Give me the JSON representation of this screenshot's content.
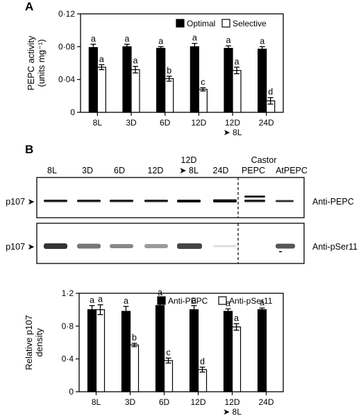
{
  "panels": {
    "a": "A",
    "b": "B"
  },
  "chart_data": [
    {
      "id": "chartA",
      "type": "bar",
      "categories": [
        "8L",
        "3D",
        "6D",
        "12D",
        "12D ➤ 8L",
        "24D"
      ],
      "category_lines": [
        [
          "8L"
        ],
        [
          "3D"
        ],
        [
          "6D"
        ],
        [
          "12D"
        ],
        [
          "12D",
          "➤ 8L"
        ],
        [
          "24D"
        ]
      ],
      "series": [
        {
          "name": "Optimal",
          "values": [
            0.079,
            0.08,
            0.078,
            0.08,
            0.078,
            0.077
          ],
          "errors": [
            0.004,
            0.003,
            0.002,
            0.004,
            0.003,
            0.003
          ],
          "letters": [
            "a",
            "a",
            "a",
            "a",
            "a",
            "a"
          ],
          "fill": "#000000"
        },
        {
          "name": "Selective",
          "values": [
            0.055,
            0.052,
            0.041,
            0.028,
            0.051,
            0.014
          ],
          "errors": [
            0.003,
            0.004,
            0.003,
            0.002,
            0.004,
            0.004
          ],
          "letters": [
            "a",
            "a",
            "b",
            "c",
            "a",
            "d"
          ],
          "fill": "#ffffff"
        }
      ],
      "ylabel_lines": [
        "PEPC activity",
        "(units mg⁻¹)"
      ],
      "ylim": [
        0,
        0.12
      ],
      "yticks": [
        0,
        0.04,
        0.08,
        0.12
      ],
      "yticklabels": [
        "0",
        "0·04",
        "0·08",
        "0·12"
      ],
      "legend": "top-right"
    },
    {
      "id": "chartB",
      "type": "bar",
      "categories": [
        "8L",
        "3D",
        "6D",
        "12D",
        "12D ➤ 8L",
        "24D"
      ],
      "category_lines": [
        [
          "8L"
        ],
        [
          "3D"
        ],
        [
          "6D"
        ],
        [
          "12D"
        ],
        [
          "12D",
          "➤ 8L"
        ],
        [
          "24D"
        ]
      ],
      "series": [
        {
          "name": "Anti-PEPC",
          "values": [
            1.0,
            0.98,
            1.05,
            1.0,
            0.98,
            1.0
          ],
          "errors": [
            0.05,
            0.06,
            0.09,
            0.05,
            0.03,
            0.02
          ],
          "letters": [
            "a",
            "a",
            "a",
            "a",
            "a",
            "a"
          ],
          "fill": "#000000"
        },
        {
          "name": "Anti-pSer11",
          "values": [
            1.0,
            0.57,
            0.38,
            0.27,
            0.79,
            null
          ],
          "errors": [
            0.06,
            0.02,
            0.03,
            0.03,
            0.04,
            null
          ],
          "letters": [
            "a",
            "b",
            "c",
            "d",
            "a",
            ""
          ],
          "fill": "#ffffff"
        }
      ],
      "ylabel_lines": [
        "Relative p107",
        "density"
      ],
      "ylim": [
        0,
        1.2
      ],
      "yticks": [
        0,
        0.4,
        0.8,
        1.2
      ],
      "yticklabels": [
        "0",
        "0·4",
        "0·8",
        "1·2"
      ],
      "legend": "top-right"
    }
  ],
  "blot": {
    "lane_labels": [
      "8L",
      "3D",
      "6D",
      "12D",
      "24D",
      "PEPC",
      "AtPEPC"
    ],
    "lane_label_12d8l": [
      "12D",
      "➤ 8L"
    ],
    "castor_label": "Castor",
    "row1_label": "Anti-PEPC",
    "row2_label": "Anti-pSer11",
    "band_label": "p107 ➤"
  }
}
